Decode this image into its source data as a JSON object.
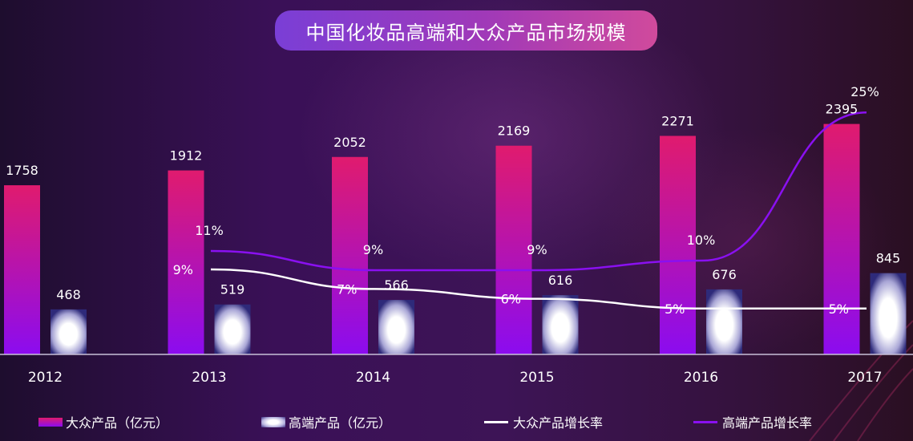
{
  "chart_data": {
    "type": "bar",
    "title": "中国化妆品高端和大众产品市场规模",
    "categories": [
      "2012",
      "2013",
      "2014",
      "2015",
      "2016",
      "2017"
    ],
    "series": [
      {
        "name": "大众产品（亿元）",
        "type": "bar",
        "values": [
          1758,
          1912,
          2052,
          2169,
          2271,
          2395
        ]
      },
      {
        "name": "高端产品（亿元）",
        "type": "bar",
        "values": [
          468,
          519,
          566,
          616,
          676,
          845
        ]
      },
      {
        "name": "大众产品增长率",
        "type": "line",
        "values": [
          null,
          9,
          7,
          6,
          5,
          5
        ],
        "labels": [
          "",
          "9%",
          "7%",
          "6%",
          "5%",
          "5%"
        ]
      },
      {
        "name": "高端产品增长率",
        "type": "line",
        "values": [
          null,
          11,
          9,
          9,
          10,
          25
        ],
        "labels": [
          "",
          "11%",
          "9%",
          "9%",
          "10%",
          "25%"
        ]
      }
    ],
    "bar_labels_mass": [
      "1758",
      "1912",
      "2052",
      "2169",
      "2271",
      "2395"
    ],
    "bar_labels_high": [
      "468",
      "519",
      "566",
      "616",
      "676",
      "845"
    ],
    "ylim": [
      0,
      2400
    ],
    "grid": false,
    "legend_position": "bottom",
    "colors": {
      "mass_top": "#e01b6e",
      "mass_bottom": "#8b0cf0",
      "high_center": "#ffffff",
      "high_edge": "#2e2a7a",
      "mass_growth_line": "#ffffff",
      "high_growth_line": "#8a10f0",
      "axis": "#c8c0d8"
    }
  }
}
